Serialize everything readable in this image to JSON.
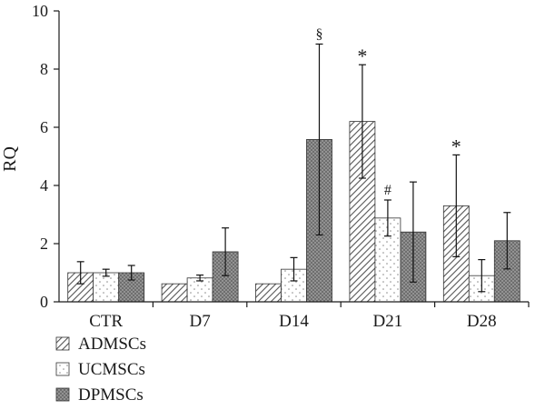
{
  "chart_data": {
    "type": "bar",
    "title": "",
    "xlabel": "",
    "ylabel": "RQ",
    "ylim": [
      0,
      10
    ],
    "yticks": [
      "0",
      "2",
      "4",
      "6",
      "8",
      "10"
    ],
    "categories": [
      "CTR",
      "D7",
      "D14",
      "D21",
      "D28"
    ],
    "grid": false,
    "legend_position": "bottom-left",
    "series": [
      {
        "name": "ADMSCs",
        "pattern": "diagonal-hatch",
        "values": [
          1.0,
          0.62,
          0.62,
          6.2,
          3.3
        ],
        "errors": [
          0.38,
          0.0,
          0.0,
          1.95,
          1.75
        ]
      },
      {
        "name": "UCMSCs",
        "pattern": "sparse-dots",
        "values": [
          1.0,
          0.82,
          1.12,
          2.88,
          0.9
        ],
        "errors": [
          0.12,
          0.1,
          0.4,
          0.62,
          0.55
        ]
      },
      {
        "name": "DPMSCs",
        "pattern": "dense-dots",
        "values": [
          1.0,
          1.72,
          5.58,
          2.4,
          2.1
        ],
        "errors": [
          0.25,
          0.82,
          3.28,
          1.72,
          0.97
        ]
      }
    ],
    "annotations": [
      {
        "text": "§",
        "category": "D14",
        "series": "DPMSCs"
      },
      {
        "text": "*",
        "category": "D21",
        "series": "ADMSCs"
      },
      {
        "text": "#",
        "category": "D21",
        "series": "UCMSCs"
      },
      {
        "text": "*",
        "category": "D28",
        "series": "ADMSCs"
      }
    ],
    "colors": {
      "axis": "#1a1a1a",
      "bar_stroke": "#333333",
      "hatch": "#555555",
      "dense_fill": "#6e6e6e",
      "dots_dark": "#c9c9c9",
      "dots_light": "#8a8a8a"
    }
  }
}
